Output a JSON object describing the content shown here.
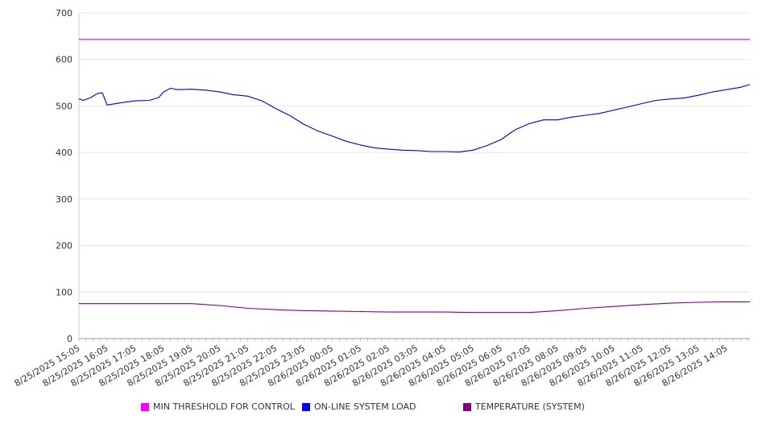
{
  "chart_data": {
    "type": "line",
    "ylim": [
      0,
      700
    ],
    "yticks": [
      0,
      100,
      200,
      300,
      400,
      500,
      600,
      700
    ],
    "xlim": [
      "8/25/2025 15:05",
      "8/26/2025 14:55"
    ],
    "grid": {
      "horizontal": true,
      "vertical": false
    },
    "legend_position": "bottom",
    "x_tick_labels": [
      "8/25/2025 15:05",
      "8/25/2025 16:05",
      "8/25/2025 17:05",
      "8/25/2025 18:05",
      "8/25/2025 19:05",
      "8/25/2025 20:05",
      "8/25/2025 21:05",
      "8/25/2025 22:05",
      "8/25/2025 23:05",
      "8/26/2025 00:05",
      "8/26/2025 01:05",
      "8/26/2025 02:05",
      "8/26/2025 03:05",
      "8/26/2025 04:05",
      "8/26/2025 05:05",
      "8/26/2025 06:05",
      "8/26/2025 07:05",
      "8/26/2025 08:05",
      "8/26/2025 09:05",
      "8/26/2025 10:05",
      "8/26/2025 11:05",
      "8/26/2025 12:05",
      "8/26/2025 13:05",
      "8/26/2025 14:05"
    ],
    "series": [
      {
        "name": "MIN THRESHOLD FOR CONTROL",
        "color": "#cc00cc",
        "swatch_color": "#ff00ff",
        "points": [
          [
            "8/25/2025 15:05",
            643
          ],
          [
            "8/26/2025 14:55",
            643
          ]
        ]
      },
      {
        "name": "ON-LINE SYSTEM LOAD",
        "color": "#0000cc",
        "swatch_color": "#0000ff",
        "points": [
          [
            "8/25/2025 15:05",
            515
          ],
          [
            "8/25/2025 15:15",
            512
          ],
          [
            "8/25/2025 15:30",
            518
          ],
          [
            "8/25/2025 15:45",
            527
          ],
          [
            "8/25/2025 15:55",
            528
          ],
          [
            "8/25/2025 16:05",
            502
          ],
          [
            "8/25/2025 16:35",
            507
          ],
          [
            "8/25/2025 17:05",
            511
          ],
          [
            "8/25/2025 17:35",
            512
          ],
          [
            "8/25/2025 17:55",
            518
          ],
          [
            "8/25/2025 18:05",
            530
          ],
          [
            "8/25/2025 18:20",
            538
          ],
          [
            "8/25/2025 18:35",
            535
          ],
          [
            "8/25/2025 19:05",
            536
          ],
          [
            "8/25/2025 19:35",
            534
          ],
          [
            "8/25/2025 20:05",
            530
          ],
          [
            "8/25/2025 20:35",
            524
          ],
          [
            "8/25/2025 21:05",
            521
          ],
          [
            "8/25/2025 21:35",
            511
          ],
          [
            "8/25/2025 22:05",
            494
          ],
          [
            "8/25/2025 22:35",
            479
          ],
          [
            "8/25/2025 23:05",
            460
          ],
          [
            "8/25/2025 23:35",
            446
          ],
          [
            "8/26/2025 00:05",
            435
          ],
          [
            "8/26/2025 00:35",
            424
          ],
          [
            "8/26/2025 01:05",
            416
          ],
          [
            "8/26/2025 01:35",
            410
          ],
          [
            "8/26/2025 02:05",
            407
          ],
          [
            "8/26/2025 02:35",
            405
          ],
          [
            "8/26/2025 03:05",
            404
          ],
          [
            "8/26/2025 03:35",
            402
          ],
          [
            "8/26/2025 04:05",
            402
          ],
          [
            "8/26/2025 04:35",
            401
          ],
          [
            "8/26/2025 05:05",
            405
          ],
          [
            "8/26/2025 05:35",
            415
          ],
          [
            "8/26/2025 06:05",
            428
          ],
          [
            "8/26/2025 06:35",
            449
          ],
          [
            "8/26/2025 07:05",
            462
          ],
          [
            "8/26/2025 07:35",
            470
          ],
          [
            "8/26/2025 08:05",
            470
          ],
          [
            "8/26/2025 08:35",
            476
          ],
          [
            "8/26/2025 09:05",
            480
          ],
          [
            "8/26/2025 09:35",
            484
          ],
          [
            "8/26/2025 10:05",
            491
          ],
          [
            "8/26/2025 10:35",
            498
          ],
          [
            "8/26/2025 11:05",
            505
          ],
          [
            "8/26/2025 11:35",
            512
          ],
          [
            "8/26/2025 12:05",
            515
          ],
          [
            "8/26/2025 12:35",
            517
          ],
          [
            "8/26/2025 13:05",
            523
          ],
          [
            "8/26/2025 13:35",
            530
          ],
          [
            "8/26/2025 14:05",
            535
          ],
          [
            "8/26/2025 14:35",
            540
          ],
          [
            "8/26/2025 14:55",
            546
          ]
        ]
      },
      {
        "name": "TEMPERATURE (SYSTEM)",
        "color": "#800080",
        "swatch_color": "#800080",
        "points": [
          [
            "8/25/2025 15:05",
            75
          ],
          [
            "8/25/2025 17:05",
            75
          ],
          [
            "8/25/2025 19:05",
            75
          ],
          [
            "8/25/2025 20:05",
            71
          ],
          [
            "8/25/2025 21:05",
            65
          ],
          [
            "8/25/2025 22:05",
            62
          ],
          [
            "8/25/2025 23:05",
            60
          ],
          [
            "8/26/2025 00:05",
            59
          ],
          [
            "8/26/2025 01:05",
            58
          ],
          [
            "8/26/2025 02:05",
            57
          ],
          [
            "8/26/2025 03:05",
            57
          ],
          [
            "8/26/2025 04:05",
            57
          ],
          [
            "8/26/2025 05:05",
            56
          ],
          [
            "8/26/2025 06:05",
            56
          ],
          [
            "8/26/2025 07:05",
            56
          ],
          [
            "8/26/2025 08:05",
            60
          ],
          [
            "8/26/2025 09:05",
            65
          ],
          [
            "8/26/2025 10:05",
            69
          ],
          [
            "8/26/2025 11:05",
            73
          ],
          [
            "8/26/2025 12:05",
            76
          ],
          [
            "8/26/2025 13:05",
            78
          ],
          [
            "8/26/2025 14:05",
            79
          ],
          [
            "8/26/2025 14:55",
            79
          ]
        ]
      }
    ]
  }
}
